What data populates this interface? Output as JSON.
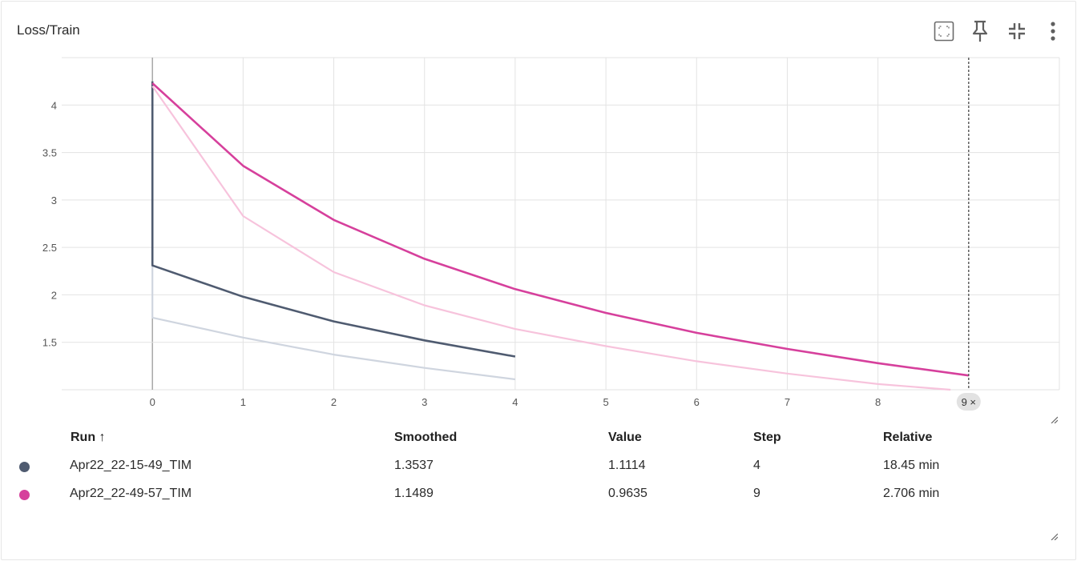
{
  "card": {
    "title": "Loss/Train"
  },
  "toolbar": {
    "icons": [
      "fit-domain-icon",
      "pin-icon",
      "collapse-icon",
      "more-vert-icon"
    ]
  },
  "colors": {
    "run1_smoothed": "#4f5b70",
    "run1_raw": "#cfd5df",
    "run2_smoothed": "#d6409c",
    "run2_raw": "#f7c3dc",
    "grid": "#e3e3e3",
    "cursor": "#555555"
  },
  "chart_data": {
    "type": "line",
    "xlim": [
      -1,
      10
    ],
    "ylim": [
      1.0,
      4.5
    ],
    "x_ticks": [
      0,
      1,
      2,
      3,
      4,
      5,
      6,
      7,
      8
    ],
    "y_ticks": [
      1.5,
      2,
      2.5,
      3,
      3.5,
      4
    ],
    "y_tick_labels": [
      "1.5",
      "2",
      "2.5",
      "3",
      "3.5",
      "4"
    ],
    "grid": true,
    "hover_step": 9,
    "hover_label": "9 ×",
    "series": [
      {
        "name": "Apr22_22-15-49_TIM",
        "kind": "raw",
        "x": [
          0,
          0,
          1,
          2,
          3,
          4
        ],
        "y": [
          2.31,
          1.76,
          1.55,
          1.37,
          1.23,
          1.11
        ]
      },
      {
        "name": "Apr22_22-15-49_TIM",
        "kind": "smoothed",
        "x": [
          0,
          0,
          1,
          2,
          3,
          4
        ],
        "y": [
          4.25,
          2.31,
          1.98,
          1.72,
          1.52,
          1.35
        ]
      },
      {
        "name": "Apr22_22-49-57_TIM",
        "kind": "raw",
        "x": [
          0,
          1,
          2,
          3,
          4,
          5,
          6,
          7,
          8,
          8.8
        ],
        "y": [
          4.2,
          2.83,
          2.24,
          1.89,
          1.64,
          1.46,
          1.3,
          1.17,
          1.06,
          1.0
        ]
      },
      {
        "name": "Apr22_22-49-57_TIM",
        "kind": "smoothed",
        "x": [
          0,
          1,
          2,
          3,
          4,
          5,
          6,
          7,
          8,
          9
        ],
        "y": [
          4.23,
          3.36,
          2.79,
          2.38,
          2.06,
          1.81,
          1.6,
          1.43,
          1.28,
          1.15
        ]
      }
    ]
  },
  "table": {
    "headers": {
      "run": "Run ↑",
      "smoothed": "Smoothed",
      "value": "Value",
      "step": "Step",
      "relative": "Relative"
    },
    "rows": [
      {
        "run": "Apr22_22-15-49_TIM",
        "smoothed": "1.3537",
        "value": "1.1114",
        "step": "4",
        "relative": "18.45 min",
        "color": "#4f5b70"
      },
      {
        "run": "Apr22_22-49-57_TIM",
        "smoothed": "1.1489",
        "value": "0.9635",
        "step": "9",
        "relative": "2.706 min",
        "color": "#d6409c"
      }
    ]
  }
}
